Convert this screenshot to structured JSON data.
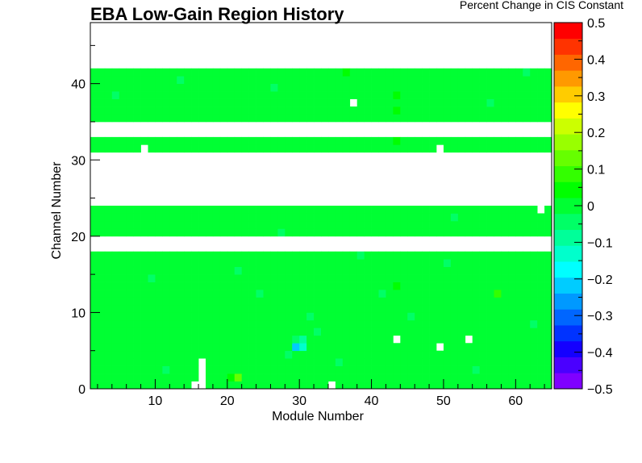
{
  "chart_data": {
    "type": "heatmap",
    "title": "EBA Low-Gain Region History",
    "xlabel": "Module Number",
    "ylabel": "Channel Number",
    "zlabel": "Percent Change in CIS Constant",
    "xlim": [
      1,
      65
    ],
    "ylim": [
      0,
      48
    ],
    "zlim": [
      -0.5,
      0.5
    ],
    "x_ticks": [
      10,
      20,
      30,
      40,
      50,
      60
    ],
    "y_ticks": [
      0,
      10,
      20,
      30,
      40
    ],
    "z_ticks": [
      "0.5",
      "0.4",
      "0.3",
      "0.2",
      "0.1",
      "0",
      "−0.1",
      "−0.2",
      "−0.3",
      "−0.4",
      "−0.5"
    ],
    "z_tick_values": [
      0.5,
      0.4,
      0.3,
      0.2,
      0.1,
      0,
      -0.1,
      -0.2,
      -0.3,
      -0.4,
      -0.5
    ],
    "palette": [
      "#7f00ff",
      "#4a00ff",
      "#1400ff",
      "#0033ff",
      "#0066ff",
      "#0099ff",
      "#00ccff",
      "#00ffff",
      "#00ffcc",
      "#00ff99",
      "#00ff66",
      "#00ff33",
      "#00ff00",
      "#33ff00",
      "#66ff00",
      "#99ff00",
      "#ccff00",
      "#ffff00",
      "#ffcc00",
      "#ff9900",
      "#ff6600",
      "#ff3300",
      "#ff0000"
    ],
    "grid": false,
    "legend": "color bar right",
    "default_value": 0.0,
    "filled_channel_ranges": [
      [
        0,
        18
      ],
      [
        20,
        24
      ],
      [
        31,
        33
      ],
      [
        35,
        42
      ]
    ],
    "empty_cells": [
      [
        15,
        18
      ],
      [
        15,
        19
      ],
      [
        15,
        0
      ],
      [
        15,
        1
      ],
      [
        15,
        2
      ],
      [
        15,
        3
      ],
      [
        14,
        0
      ],
      [
        33,
        0
      ],
      [
        62,
        23
      ],
      [
        64,
        3
      ],
      [
        7,
        31
      ],
      [
        48,
        31
      ],
      [
        36,
        37
      ],
      [
        42,
        6
      ],
      [
        48,
        5
      ],
      [
        52,
        6
      ]
    ],
    "cells": [
      [
        28,
        5,
        -0.22
      ],
      [
        29,
        5,
        -0.12
      ],
      [
        29,
        6,
        -0.08
      ],
      [
        28,
        6,
        -0.04
      ],
      [
        20,
        1,
        0.12
      ],
      [
        56,
        12,
        0.09
      ],
      [
        42,
        13,
        0.03
      ],
      [
        42,
        32,
        0.03
      ],
      [
        42,
        36,
        0.03
      ],
      [
        42,
        38,
        0.03
      ],
      [
        42,
        40,
        0.02
      ],
      [
        35,
        41,
        0.03
      ],
      [
        36,
        41,
        0.02
      ],
      [
        45,
        12,
        0.02
      ],
      [
        5,
        10,
        0.02
      ],
      [
        19,
        1,
        0.04
      ],
      [
        30,
        9,
        -0.03
      ],
      [
        30,
        10,
        -0.02
      ],
      [
        31,
        7,
        -0.03
      ],
      [
        27,
        4,
        -0.03
      ],
      [
        12,
        40,
        -0.03
      ],
      [
        25,
        39,
        -0.03
      ],
      [
        55,
        37,
        -0.03
      ],
      [
        49,
        16,
        -0.03
      ],
      [
        20,
        15,
        -0.03
      ],
      [
        10,
        2,
        -0.03
      ],
      [
        64,
        6,
        -0.03
      ],
      [
        3,
        38,
        -0.03
      ],
      [
        60,
        41,
        -0.03
      ],
      [
        40,
        12,
        -0.03
      ],
      [
        50,
        22,
        -0.03
      ],
      [
        26,
        20,
        -0.03
      ],
      [
        18,
        34,
        -0.03
      ],
      [
        61,
        8,
        -0.03
      ],
      [
        8,
        14,
        -0.03
      ],
      [
        34,
        3,
        -0.03
      ],
      [
        37,
        17,
        -0.03
      ],
      [
        44,
        9,
        -0.03
      ],
      [
        23,
        12,
        -0.03
      ],
      [
        53,
        2,
        -0.03
      ]
    ]
  }
}
